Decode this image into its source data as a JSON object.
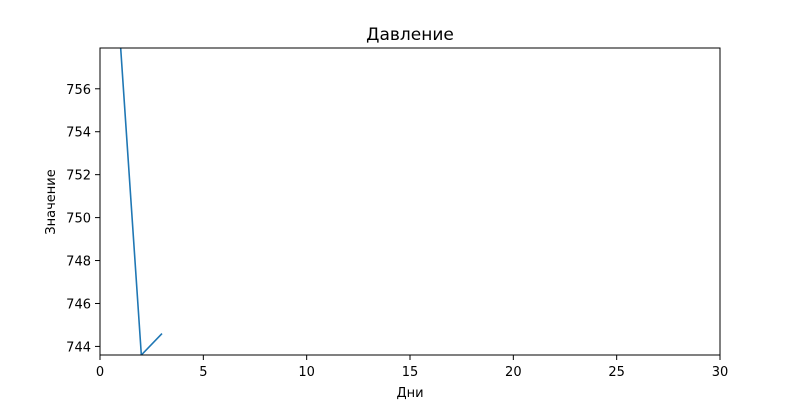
{
  "chart_data": {
    "type": "line",
    "title": "Давление",
    "xlabel": "Дни",
    "ylabel": "Значение",
    "xlim": [
      0,
      30
    ],
    "ylim": [
      743.6,
      757.9
    ],
    "x_ticks": [
      0,
      5,
      10,
      15,
      20,
      25,
      30
    ],
    "y_ticks": [
      744,
      746,
      748,
      750,
      752,
      754,
      756
    ],
    "grid": false,
    "legend": "none",
    "series": [
      {
        "color": "#1f77b4",
        "x": [
          1,
          2,
          3
        ],
        "values": [
          757.9,
          743.6,
          744.6
        ]
      }
    ]
  }
}
